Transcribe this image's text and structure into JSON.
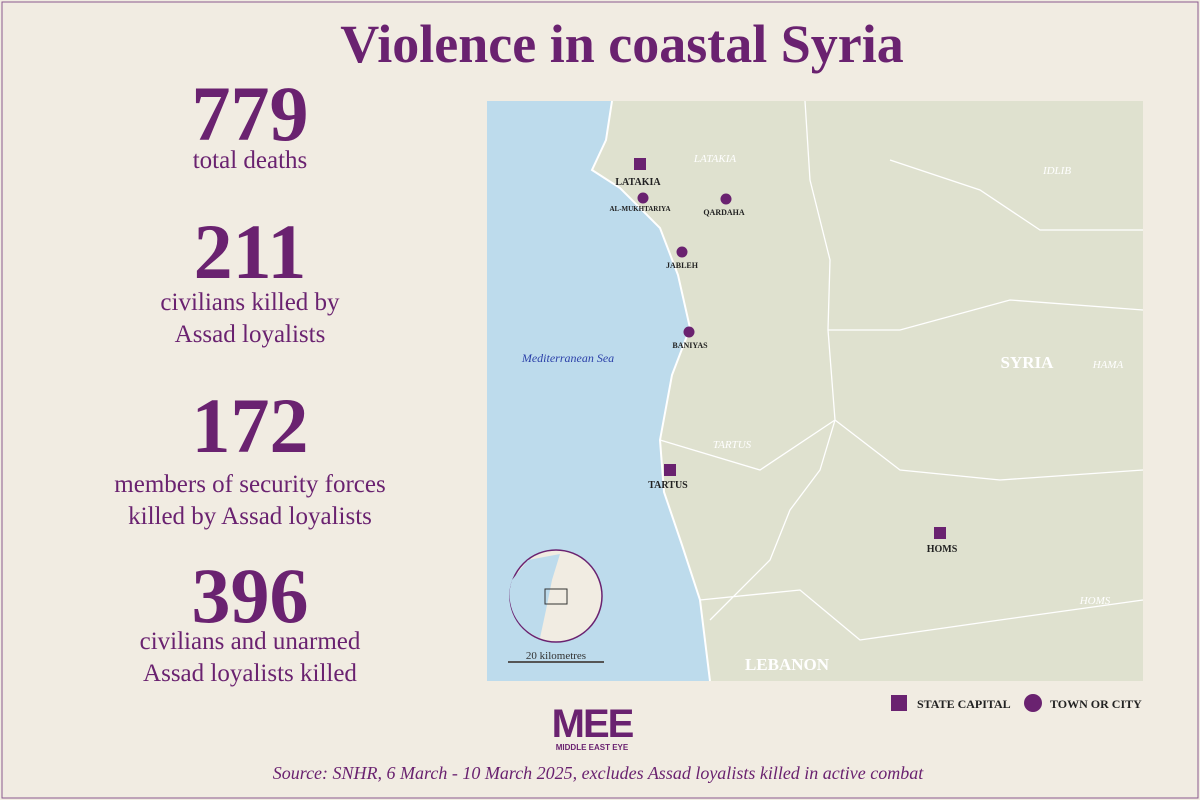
{
  "header": {
    "title": "Violence in coastal Syria"
  },
  "stats": [
    {
      "value": 779,
      "label_lines": [
        "total deaths"
      ]
    },
    {
      "value": 211,
      "label_lines": [
        "civilians killed by",
        "Assad loyalists"
      ]
    },
    {
      "value": 172,
      "label_lines": [
        "members of security forces",
        "killed by Assad loyalists"
      ]
    },
    {
      "value": 396,
      "label_lines": [
        "civilians and unarmed",
        "Assad loyalists killed"
      ]
    }
  ],
  "map": {
    "sea": "Mediterranean Sea",
    "countries": [
      "SYRIA",
      "LEBANON"
    ],
    "regions": [
      "LATAKIA",
      "IDLIB",
      "HAMA",
      "TARTUS",
      "HOMS"
    ],
    "places": [
      {
        "name": "LATAKIA",
        "kind": "state capital"
      },
      {
        "name": "AL-MUKHTARIYA",
        "kind": "town or city"
      },
      {
        "name": "QARDAHA",
        "kind": "town or city"
      },
      {
        "name": "JABLEH",
        "kind": "town or city"
      },
      {
        "name": "BANIYAS",
        "kind": "town or city"
      },
      {
        "name": "TARTUS",
        "kind": "state capital"
      },
      {
        "name": "HOMS",
        "kind": "state capital"
      }
    ],
    "scale": "20 kilometres"
  },
  "legend": {
    "state_capital": "STATE CAPITAL",
    "town": "TOWN OR CITY"
  },
  "logo": {
    "mark": "MEE",
    "name": "MIDDLE EAST EYE"
  },
  "source": "Source: SNHR, 6 March - 10 March 2025, excludes Assad loyalists killed in active combat"
}
